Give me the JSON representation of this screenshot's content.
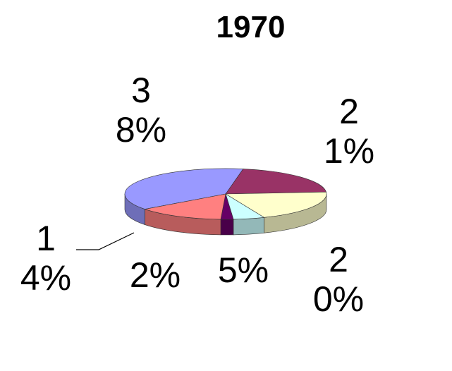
{
  "chart_data": {
    "type": "pie",
    "title": "1970",
    "values": [
      38,
      21,
      20,
      5,
      2,
      14
    ],
    "value_labels": [
      "38%",
      "21%",
      "20%",
      "5%",
      "2%",
      "14%"
    ],
    "colors": [
      "#9999ff",
      "#993366",
      "#ffffcc",
      "#ccffff",
      "#660066",
      "#ff8080"
    ]
  }
}
